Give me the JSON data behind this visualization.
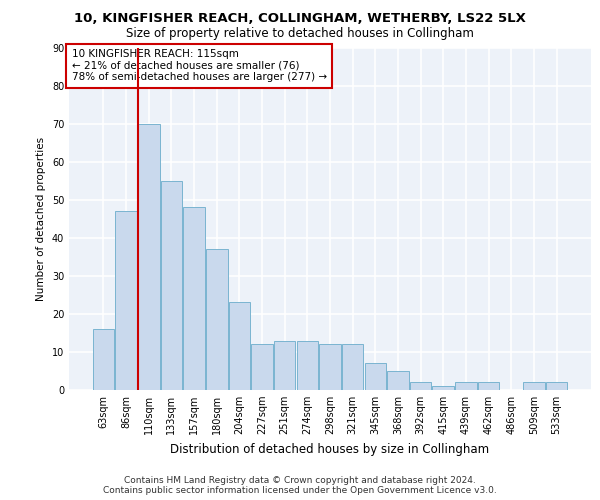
{
  "title1": "10, KINGFISHER REACH, COLLINGHAM, WETHERBY, LS22 5LX",
  "title2": "Size of property relative to detached houses in Collingham",
  "xlabel": "Distribution of detached houses by size in Collingham",
  "ylabel": "Number of detached properties",
  "categories": [
    "63sqm",
    "86sqm",
    "110sqm",
    "133sqm",
    "157sqm",
    "180sqm",
    "204sqm",
    "227sqm",
    "251sqm",
    "274sqm",
    "298sqm",
    "321sqm",
    "345sqm",
    "368sqm",
    "392sqm",
    "415sqm",
    "439sqm",
    "462sqm",
    "486sqm",
    "509sqm",
    "533sqm"
  ],
  "values": [
    16,
    47,
    70,
    55,
    48,
    37,
    23,
    12,
    13,
    13,
    12,
    12,
    7,
    5,
    2,
    1,
    2,
    2,
    0,
    2,
    2
  ],
  "bar_color": "#c9d9ed",
  "bar_edge_color": "#7ab4d0",
  "vline_x_index": 2,
  "vline_color": "#cc0000",
  "annotation_title": "10 KINGFISHER REACH: 115sqm",
  "annotation_line1": "← 21% of detached houses are smaller (76)",
  "annotation_line2": "78% of semi-detached houses are larger (277) →",
  "annotation_box_color": "#ffffff",
  "annotation_box_edge": "#cc0000",
  "footer1": "Contains HM Land Registry data © Crown copyright and database right 2024.",
  "footer2": "Contains public sector information licensed under the Open Government Licence v3.0.",
  "ylim": [
    0,
    90
  ],
  "yticks": [
    0,
    10,
    20,
    30,
    40,
    50,
    60,
    70,
    80,
    90
  ],
  "bg_color": "#edf2f9",
  "grid_color": "#ffffff",
  "title1_fontsize": 9.5,
  "title2_fontsize": 8.5,
  "xlabel_fontsize": 8.5,
  "ylabel_fontsize": 7.5,
  "tick_fontsize": 7,
  "annot_fontsize": 7.5,
  "footer_fontsize": 6.5
}
